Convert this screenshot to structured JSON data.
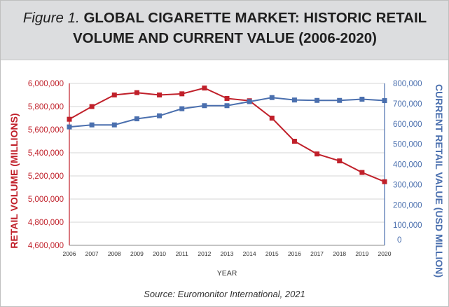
{
  "figure": {
    "label": "Figure 1.",
    "title_line1": "GLOBAL CIGARETTE MARKET: HISTORIC RETAIL",
    "title_line2": "VOLUME AND CURRENT VALUE (2006-2020)",
    "source": "Source: Euromonitor International, 2021"
  },
  "colors": {
    "volume": "#c0202a",
    "value": "#4a6fae",
    "grid": "#d6d6d6"
  },
  "chart_data": {
    "type": "line",
    "x": [
      2006,
      2007,
      2008,
      2009,
      2010,
      2011,
      2012,
      2013,
      2014,
      2015,
      2016,
      2017,
      2018,
      2019,
      2020
    ],
    "x_ticks": [
      "2006",
      "2007",
      "2008",
      "2009",
      "2010",
      "2011",
      "2012",
      "2013",
      "2014",
      "2015",
      "2016",
      "2017",
      "2018",
      "2019",
      "2020"
    ],
    "xlabel": "YEAR",
    "ylabel_left": "RETAIL VOLUME (MILLIONS)",
    "ylabel_right": "CURRENT RETAIL VALUE (USD MILLION)",
    "ylim_left": [
      4600000,
      6000000
    ],
    "ylim_right": [
      0,
      800000
    ],
    "left_ticks": [
      "6,000,000",
      "5,800,000",
      "5,600,000",
      "5,400,000",
      "5,200,000",
      "5,000,000",
      "4,800,000",
      "4,600,000"
    ],
    "left_tick_values": [
      6000000,
      5800000,
      5600000,
      5400000,
      5200000,
      5000000,
      4800000,
      4600000
    ],
    "right_ticks": [
      "800,000",
      "700,000",
      "600,000",
      "500,000",
      "400,000",
      "300,000",
      "200,000",
      "100,000",
      "0"
    ],
    "right_tick_values": [
      800000,
      700000,
      600000,
      500000,
      400000,
      300000,
      200000,
      100000,
      0
    ],
    "grid": true,
    "series": [
      {
        "axis": "left",
        "marker": "square",
        "values": [
          5690000,
          5800000,
          5900000,
          5920000,
          5900000,
          5910000,
          5960000,
          5870000,
          5850000,
          5700000,
          5500000,
          5390000,
          5330000,
          5230000,
          5150000
        ]
      },
      {
        "axis": "right",
        "marker": "square",
        "values": [
          585000,
          595000,
          595000,
          625000,
          640000,
          675000,
          690000,
          690000,
          710000,
          730000,
          718000,
          716000,
          716000,
          722000,
          715000
        ]
      }
    ]
  }
}
